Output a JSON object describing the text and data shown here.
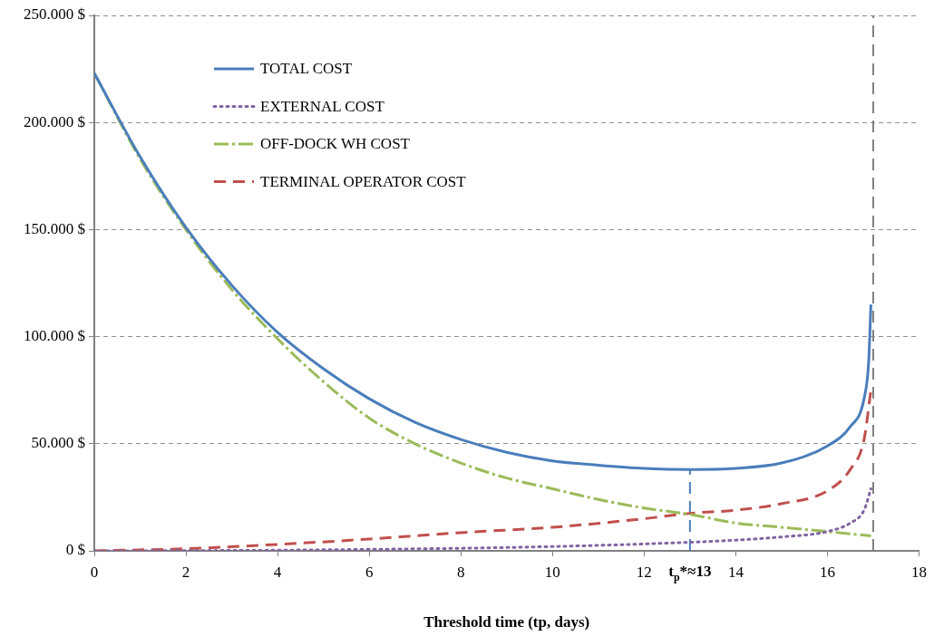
{
  "chart_data": {
    "type": "line",
    "xlabel": "Threshold time (tp, days)",
    "xlim": [
      0,
      18
    ],
    "xticks": [
      0,
      2,
      4,
      6,
      8,
      10,
      12,
      14,
      16,
      18
    ],
    "ylim": [
      0,
      250000
    ],
    "yticks": [
      {
        "value": 0,
        "label": "0 $"
      },
      {
        "value": 50000,
        "label": "50.000 $"
      },
      {
        "value": 100000,
        "label": "100.000 $"
      },
      {
        "value": 150000,
        "label": "150.000 $"
      },
      {
        "value": 200000,
        "label": "200.000 $"
      },
      {
        "value": 250000,
        "label": "250.000 $"
      }
    ],
    "grid": "y",
    "legend": "top left",
    "marker": "none",
    "series": [
      {
        "name": "TOTAL COST",
        "color": "#4a7ebb",
        "line_style": "solid",
        "x": [
          0,
          1,
          2,
          3,
          4,
          5,
          6,
          7,
          8,
          9,
          10,
          11,
          12,
          13,
          14,
          15,
          16,
          16.5,
          16.8,
          16.9,
          16.95
        ],
        "values": [
          223000,
          184000,
          151000,
          124000,
          102000,
          85000,
          71000,
          60000,
          52000,
          46000,
          42000,
          40000,
          38500,
          38000,
          38500,
          41000,
          49000,
          58000,
          71000,
          88000,
          115000
        ]
      },
      {
        "name": "EXTERNAL COST",
        "color": "#8064a2",
        "line_style": "dotted",
        "x": [
          0,
          2,
          4,
          6,
          8,
          10,
          12,
          13,
          14,
          15,
          16,
          16.5,
          16.8,
          16.95
        ],
        "values": [
          0,
          100,
          300,
          700,
          1200,
          2000,
          3200,
          4000,
          5000,
          6500,
          9000,
          13000,
          19000,
          29000
        ]
      },
      {
        "name": "OFF-DOCK WH COST",
        "color": "#9bbb59",
        "line_style": "dashdot",
        "x": [
          0,
          1,
          2,
          3,
          4,
          5,
          6,
          7,
          8,
          9,
          10,
          11,
          12,
          13,
          14,
          15,
          16,
          16.95
        ],
        "values": [
          223000,
          183000,
          150000,
          122000,
          99000,
          79000,
          62000,
          50000,
          41000,
          34000,
          29000,
          24000,
          20000,
          17000,
          13000,
          11000,
          9000,
          7000
        ]
      },
      {
        "name": "TERMINAL OPERATOR COST",
        "color": "#c0504d",
        "line_style": "dashed",
        "x": [
          0,
          2,
          4,
          6,
          8,
          10,
          12,
          13,
          14,
          15,
          16,
          16.5,
          16.8,
          16.95
        ],
        "values": [
          0,
          1000,
          3000,
          5500,
          8500,
          11000,
          15000,
          17500,
          19000,
          22000,
          28000,
          38000,
          52000,
          75000
        ]
      }
    ],
    "ref_lines": [
      {
        "axis": "x",
        "value": 13,
        "label": "t$_{p}$*≈13",
        "color": "#4a7ebb",
        "line_style": "dashed"
      },
      {
        "axis": "x",
        "value": 17,
        "label": null,
        "color": "#808080",
        "line_style": "dashed"
      }
    ]
  }
}
